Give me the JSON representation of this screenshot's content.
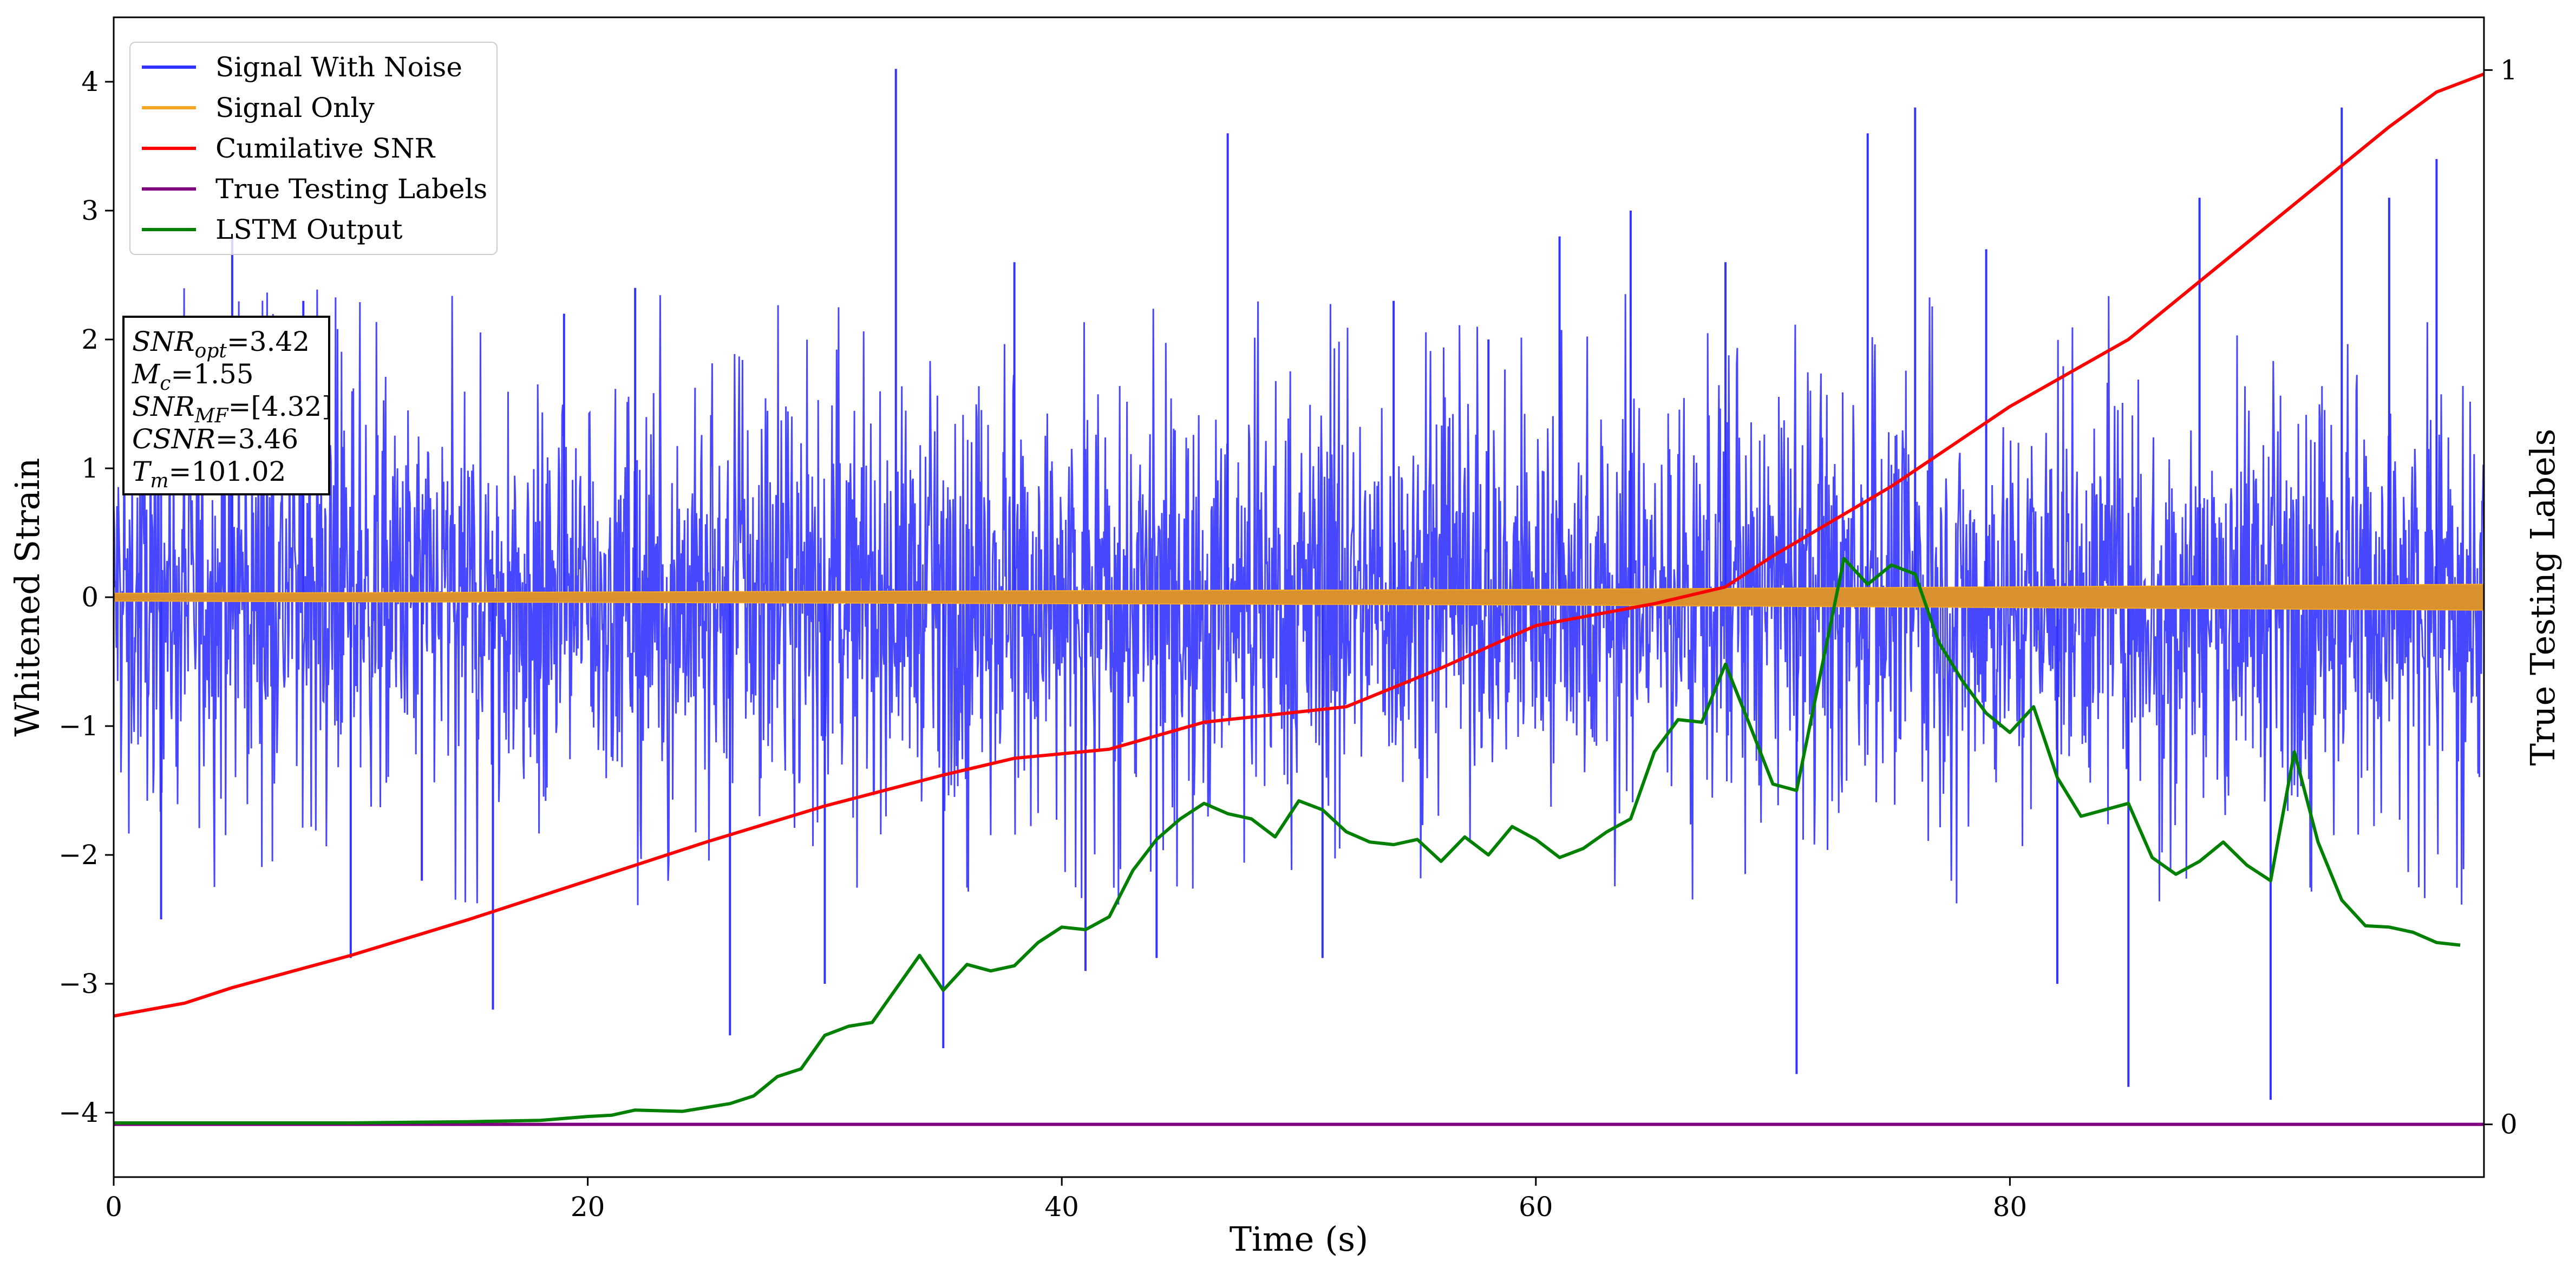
{
  "chart_data": {
    "type": "line",
    "xlabel": "Time (s)",
    "ylabel": "Whitened Strain",
    "y2label": "True Testing Labels",
    "xlim": [
      0,
      100
    ],
    "ylim": [
      -4.5,
      4.5
    ],
    "y2lim": [
      -0.05,
      1.05
    ],
    "x_ticks": [
      "0",
      "20",
      "40",
      "60",
      "80"
    ],
    "x_tick_values": [
      0,
      20,
      40,
      60,
      80
    ],
    "y_ticks": [
      "−4",
      "−3",
      "−2",
      "−1",
      "0",
      "1",
      "2",
      "3",
      "4"
    ],
    "y_tick_values": [
      -4,
      -3,
      -2,
      -1,
      0,
      1,
      2,
      3,
      4
    ],
    "y2_ticks": [
      "0",
      "1"
    ],
    "y2_tick_values": [
      0,
      1
    ],
    "legend_position": "top-left",
    "grid": false,
    "series": [
      {
        "name": "Signal With Noise",
        "color": "#3333ff",
        "axis": "left",
        "style": "dense-noise",
        "envelope_typical": 1.2,
        "peaks": [
          [
            2,
            -2.5
          ],
          [
            5,
            2.8
          ],
          [
            8,
            2.3
          ],
          [
            10,
            -2.8
          ],
          [
            13,
            -2.2
          ],
          [
            16,
            -3.2
          ],
          [
            19,
            2.2
          ],
          [
            22,
            2.4
          ],
          [
            26,
            -3.4
          ],
          [
            30,
            -3.0
          ],
          [
            33,
            4.1
          ],
          [
            35,
            -3.5
          ],
          [
            38,
            2.6
          ],
          [
            41,
            -2.9
          ],
          [
            44,
            -2.8
          ],
          [
            47,
            3.6
          ],
          [
            51,
            -2.8
          ],
          [
            54,
            2.3
          ],
          [
            58,
            2.0
          ],
          [
            61,
            2.8
          ],
          [
            64,
            3.0
          ],
          [
            68,
            2.6
          ],
          [
            71,
            -3.7
          ],
          [
            74,
            3.6
          ],
          [
            76,
            3.8
          ],
          [
            79,
            2.7
          ],
          [
            82,
            -3.0
          ],
          [
            85,
            -3.8
          ],
          [
            88,
            3.1
          ],
          [
            91,
            -3.9
          ],
          [
            94,
            3.8
          ],
          [
            96,
            3.1
          ],
          [
            98,
            3.4
          ]
        ]
      },
      {
        "name": "Signal Only",
        "color": "#f5a623",
        "axis": "left",
        "style": "chirp-band",
        "x": [
          0,
          20,
          40,
          60,
          70,
          80,
          90,
          100
        ],
        "amplitude": [
          0.03,
          0.04,
          0.05,
          0.06,
          0.07,
          0.08,
          0.09,
          0.1
        ]
      },
      {
        "name": "Cumilative SNR",
        "color": "#ff0000",
        "axis": "left",
        "x": [
          0,
          3,
          5,
          8,
          10,
          15,
          20,
          25,
          30,
          35,
          38,
          42,
          46,
          52,
          56,
          60,
          65,
          68,
          70,
          75,
          80,
          85,
          90,
          94,
          96,
          98,
          100
        ],
        "y": [
          -3.25,
          -3.15,
          -3.03,
          -2.88,
          -2.78,
          -2.5,
          -2.2,
          -1.9,
          -1.62,
          -1.38,
          -1.25,
          -1.18,
          -0.97,
          -0.85,
          -0.55,
          -0.22,
          -0.05,
          0.08,
          0.32,
          0.86,
          1.48,
          2.0,
          2.75,
          3.35,
          3.65,
          3.92,
          4.06
        ]
      },
      {
        "name": "True Testing Labels",
        "color": "#7f007f",
        "axis": "right",
        "x": [
          0,
          100
        ],
        "y": [
          0,
          0
        ]
      },
      {
        "name": "LSTM Output",
        "color": "#008000",
        "axis": "left",
        "x": [
          0,
          10,
          15,
          18,
          20,
          21,
          22,
          24,
          26,
          27,
          28,
          29,
          30,
          31,
          32,
          33,
          34,
          35,
          36,
          37,
          38,
          39,
          40,
          41,
          42,
          43,
          44,
          45,
          46,
          47,
          48,
          49,
          50,
          51,
          52,
          53,
          54,
          55,
          56,
          57,
          58,
          59,
          60,
          61,
          62,
          63,
          64,
          65,
          66,
          67,
          68,
          69,
          70,
          71,
          72,
          73,
          74,
          75,
          76,
          77,
          78,
          79,
          80,
          81,
          82,
          83,
          84,
          85,
          86,
          87,
          88,
          89,
          90,
          91,
          92,
          93,
          94,
          95,
          96,
          97,
          98,
          99
        ],
        "y": [
          -4.08,
          -4.08,
          -4.07,
          -4.06,
          -4.03,
          -4.02,
          -3.98,
          -3.99,
          -3.93,
          -3.87,
          -3.72,
          -3.66,
          -3.4,
          -3.33,
          -3.3,
          -3.04,
          -2.78,
          -3.05,
          -2.85,
          -2.9,
          -2.86,
          -2.68,
          -2.56,
          -2.58,
          -2.48,
          -2.12,
          -1.88,
          -1.72,
          -1.6,
          -1.68,
          -1.72,
          -1.86,
          -1.58,
          -1.65,
          -1.82,
          -1.9,
          -1.92,
          -1.88,
          -2.05,
          -1.86,
          -2.0,
          -1.78,
          -1.88,
          -2.02,
          -1.95,
          -1.82,
          -1.72,
          -1.2,
          -0.95,
          -0.97,
          -0.52,
          -0.98,
          -1.45,
          -1.5,
          -0.6,
          0.3,
          0.1,
          0.25,
          0.18,
          -0.35,
          -0.65,
          -0.9,
          -1.05,
          -0.85,
          -1.4,
          -1.7,
          -1.65,
          -1.6,
          -2.02,
          -2.15,
          -2.05,
          -1.9,
          -2.08,
          -2.2,
          -1.2,
          -1.9,
          -2.35,
          -2.55,
          -2.56,
          -2.6,
          -2.68,
          -2.7
        ]
      }
    ],
    "annotation": {
      "lines": [
        {
          "name": "SNR",
          "sub": "opt",
          "value": "=3.42"
        },
        {
          "name": "M",
          "sub": "c",
          "value": "=1.55"
        },
        {
          "name": "SNR",
          "sub": "MF",
          "value": "=[4.32]"
        },
        {
          "name": "CSNR",
          "sub": "",
          "value": "=3.46"
        },
        {
          "name": "T",
          "sub": "m",
          "value": "=101.02"
        }
      ]
    }
  }
}
